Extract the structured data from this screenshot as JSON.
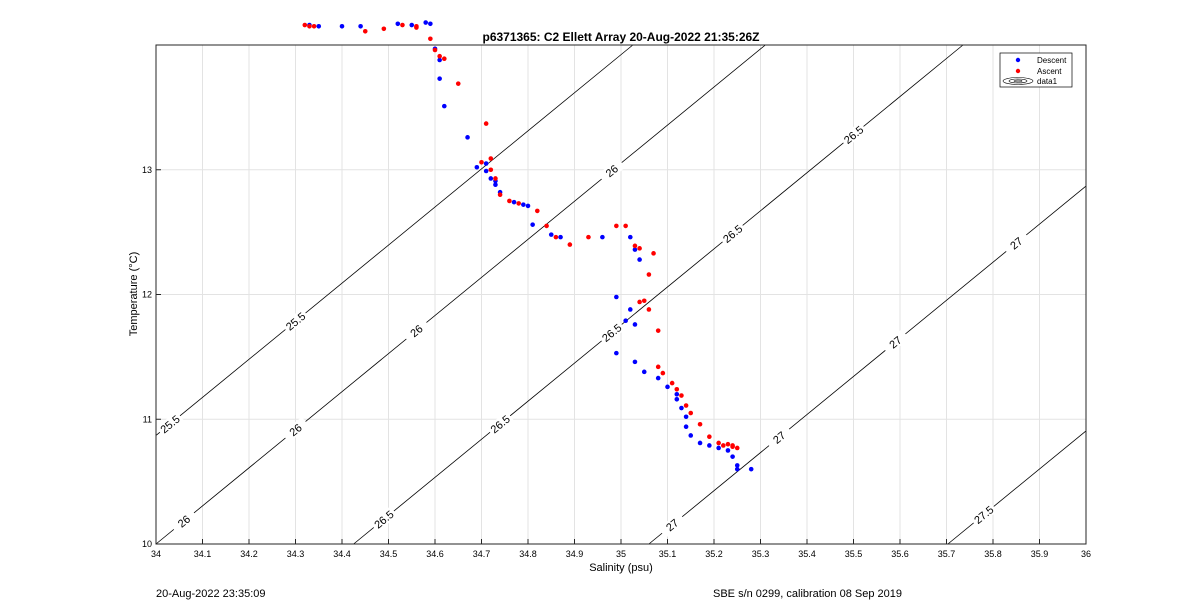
{
  "footer": {
    "timestamp": "20-Aug-2022 23:35:09",
    "calibration": "SBE s/n 0299, calibration 08 Sep 2019"
  },
  "chart_data": {
    "type": "scatter",
    "title": "p6371365: C2 Ellett Array 20-Aug-2022 21:35:26Z",
    "xlabel": "Salinity (psu)",
    "ylabel": "Temperature (°C)",
    "xlim": [
      34,
      36
    ],
    "ylim": [
      10,
      14
    ],
    "grid": true,
    "xticks": [
      34,
      34.1,
      34.2,
      34.3,
      34.4,
      34.5,
      34.6,
      34.7,
      34.8,
      34.9,
      35,
      35.1,
      35.2,
      35.3,
      35.4,
      35.5,
      35.6,
      35.7,
      35.8,
      35.9,
      36
    ],
    "xticklabels": [
      "34",
      "34.1",
      "34.2",
      "34.3",
      "34.4",
      "34.5",
      "34.6",
      "34.7",
      "34.8",
      "34.9",
      "35",
      "35.1",
      "35.2",
      "35.3",
      "35.4",
      "35.5",
      "35.6",
      "35.7",
      "35.8",
      "35.9",
      "36"
    ],
    "yticks": [
      10,
      11,
      12,
      13
    ],
    "yticklabels": [
      "10",
      "11",
      "12",
      "13"
    ],
    "legend": {
      "location": "top-right",
      "entries": [
        "Descent",
        "Ascent",
        "data1"
      ]
    },
    "colors": {
      "descent": "#0000ff",
      "ascent": "#ff0000",
      "contour": "#000000"
    },
    "contours": [
      {
        "sigma": 25.5,
        "labels": [
          "25.5",
          "25.5"
        ],
        "label_s": [
          34.03,
          34.3
        ]
      },
      {
        "sigma": 26,
        "labels": [
          "26",
          "26",
          "26",
          "26"
        ],
        "label_s": [
          34.06,
          34.3,
          34.56,
          34.98
        ]
      },
      {
        "sigma": 26.5,
        "labels": [
          "26.5",
          "26.5",
          "26.5",
          "26.5",
          "26.5"
        ],
        "label_s": [
          34.49,
          34.74,
          34.98,
          35.24,
          35.5
        ]
      },
      {
        "sigma": 27,
        "labels": [
          "27",
          "27",
          "27",
          "27"
        ],
        "label_s": [
          35.11,
          35.34,
          35.59,
          35.85
        ]
      },
      {
        "sigma": 27.5,
        "labels": [
          "27.5"
        ],
        "label_s": [
          35.78
        ]
      }
    ],
    "series": [
      {
        "name": "Descent",
        "points": [
          [
            34.33,
            14.16
          ],
          [
            34.35,
            14.15
          ],
          [
            34.4,
            14.15
          ],
          [
            34.44,
            14.15
          ],
          [
            34.52,
            14.17
          ],
          [
            34.55,
            14.16
          ],
          [
            34.58,
            14.18
          ],
          [
            34.59,
            14.17
          ],
          [
            34.6,
            13.97
          ],
          [
            34.61,
            13.88
          ],
          [
            34.61,
            13.73
          ],
          [
            34.62,
            13.51
          ],
          [
            34.67,
            13.26
          ],
          [
            34.69,
            13.02
          ],
          [
            34.71,
            13.05
          ],
          [
            34.71,
            12.99
          ],
          [
            34.72,
            12.93
          ],
          [
            34.73,
            12.91
          ],
          [
            34.73,
            12.88
          ],
          [
            34.74,
            12.82
          ],
          [
            34.77,
            12.74
          ],
          [
            34.79,
            12.72
          ],
          [
            34.8,
            12.71
          ],
          [
            34.81,
            12.56
          ],
          [
            34.85,
            12.48
          ],
          [
            34.87,
            12.46
          ],
          [
            34.96,
            12.46
          ],
          [
            35.02,
            12.46
          ],
          [
            35.03,
            12.36
          ],
          [
            35.04,
            12.28
          ],
          [
            34.99,
            11.98
          ],
          [
            35.02,
            11.88
          ],
          [
            35.03,
            11.76
          ],
          [
            35.01,
            11.79
          ],
          [
            34.99,
            11.53
          ],
          [
            35.03,
            11.46
          ],
          [
            35.05,
            11.38
          ],
          [
            35.08,
            11.33
          ],
          [
            35.1,
            11.26
          ],
          [
            35.12,
            11.2
          ],
          [
            35.12,
            11.16
          ],
          [
            35.13,
            11.09
          ],
          [
            35.14,
            11.02
          ],
          [
            35.14,
            10.94
          ],
          [
            35.15,
            10.87
          ],
          [
            35.17,
            10.81
          ],
          [
            35.19,
            10.79
          ],
          [
            35.21,
            10.77
          ],
          [
            35.23,
            10.75
          ],
          [
            35.24,
            10.7
          ],
          [
            35.25,
            10.63
          ],
          [
            35.25,
            10.6
          ],
          [
            35.28,
            10.6
          ]
        ]
      },
      {
        "name": "Ascent",
        "points": [
          [
            34.32,
            14.16
          ],
          [
            34.33,
            14.15
          ],
          [
            34.34,
            14.15
          ],
          [
            34.45,
            14.11
          ],
          [
            34.49,
            14.13
          ],
          [
            34.53,
            14.16
          ],
          [
            34.56,
            14.14
          ],
          [
            34.56,
            14.15
          ],
          [
            34.59,
            14.05
          ],
          [
            34.6,
            13.96
          ],
          [
            34.61,
            13.91
          ],
          [
            34.62,
            13.89
          ],
          [
            34.65,
            13.69
          ],
          [
            34.71,
            13.37
          ],
          [
            34.7,
            13.06
          ],
          [
            34.72,
            13.0
          ],
          [
            34.72,
            13.09
          ],
          [
            34.73,
            12.93
          ],
          [
            34.74,
            12.8
          ],
          [
            34.76,
            12.75
          ],
          [
            34.78,
            12.73
          ],
          [
            34.82,
            12.67
          ],
          [
            34.84,
            12.55
          ],
          [
            34.86,
            12.46
          ],
          [
            34.89,
            12.4
          ],
          [
            34.93,
            12.46
          ],
          [
            34.99,
            12.55
          ],
          [
            35.01,
            12.55
          ],
          [
            35.03,
            12.39
          ],
          [
            35.04,
            12.37
          ],
          [
            35.07,
            12.33
          ],
          [
            35.06,
            12.16
          ],
          [
            35.05,
            11.95
          ],
          [
            35.04,
            11.94
          ],
          [
            35.06,
            11.88
          ],
          [
            35.08,
            11.71
          ],
          [
            35.08,
            11.42
          ],
          [
            35.09,
            11.37
          ],
          [
            35.11,
            11.29
          ],
          [
            35.12,
            11.24
          ],
          [
            35.13,
            11.19
          ],
          [
            35.14,
            11.11
          ],
          [
            35.15,
            11.05
          ],
          [
            35.17,
            10.96
          ],
          [
            35.19,
            10.86
          ],
          [
            35.21,
            10.81
          ],
          [
            35.22,
            10.79
          ],
          [
            35.23,
            10.8
          ],
          [
            35.24,
            10.79
          ],
          [
            35.24,
            10.78
          ],
          [
            35.25,
            10.77
          ]
        ]
      }
    ]
  }
}
